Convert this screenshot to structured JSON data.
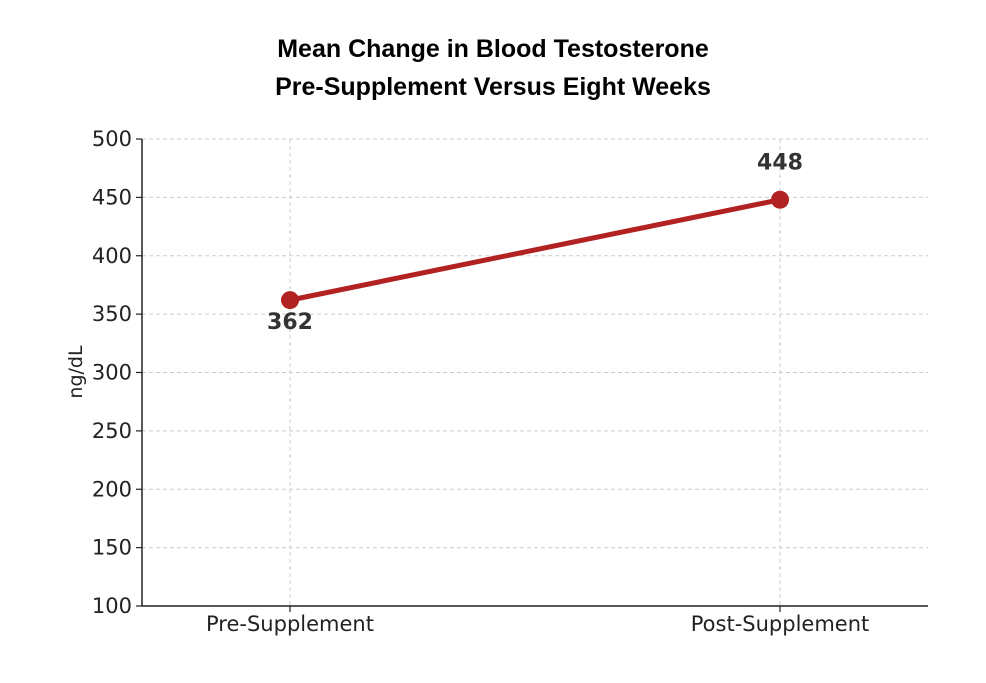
{
  "chart_data": {
    "type": "line",
    "title": [
      "Mean Change in Blood Testosterone",
      "Pre-Supplement Versus Eight Weeks"
    ],
    "xlabel": "",
    "ylabel": "ng/dL",
    "categories": [
      "Pre-Supplement",
      "Post-Supplement"
    ],
    "series": [
      {
        "values": [
          362,
          448
        ],
        "color": "#b22222"
      }
    ],
    "data_labels": [
      "362",
      "448"
    ],
    "ylim": [
      100,
      500
    ],
    "yticks": [
      100,
      150,
      200,
      250,
      300,
      350,
      400,
      450,
      500
    ],
    "ytick_labels": [
      "100",
      "150",
      "200",
      "250",
      "300",
      "350",
      "400",
      "450",
      "500"
    ],
    "grid": true,
    "legend": "none"
  }
}
